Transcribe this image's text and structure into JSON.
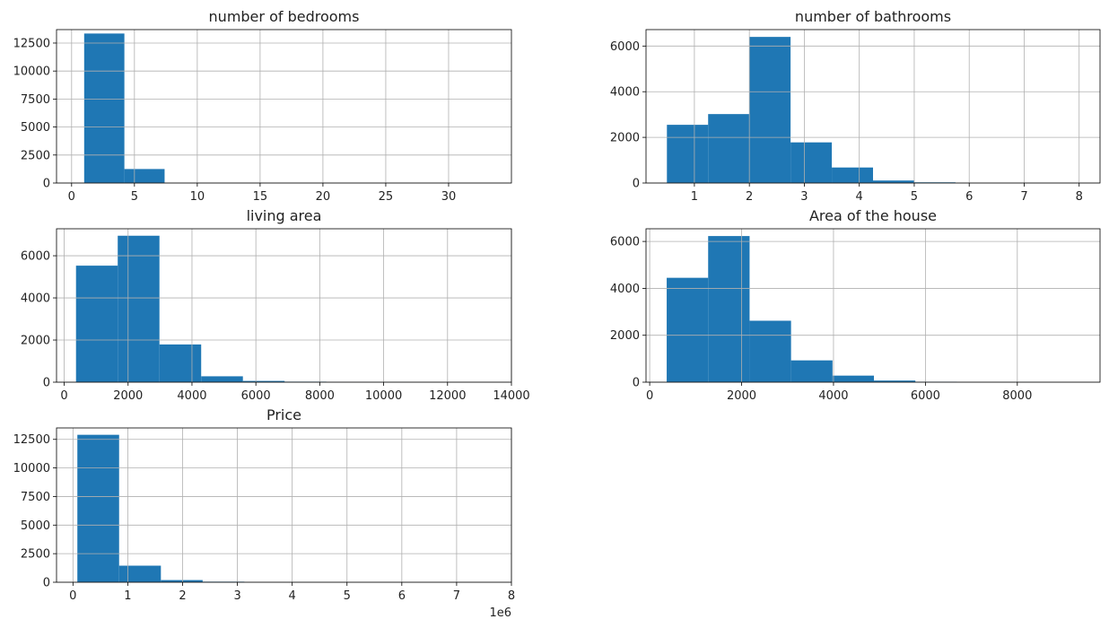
{
  "chart_data": [
    {
      "id": "bedrooms",
      "type": "bar",
      "title": "number of bedrooms",
      "xlim": [
        -1.2,
        35.0
      ],
      "ylim": [
        0,
        13700
      ],
      "xticks": [
        0,
        5,
        10,
        15,
        20,
        25,
        30
      ],
      "yticks": [
        0,
        2500,
        5000,
        7500,
        10000,
        12500
      ],
      "bins": [
        {
          "x0": 1.0,
          "x1": 4.2,
          "value": 13350
        },
        {
          "x0": 4.2,
          "x1": 7.4,
          "value": 1250
        },
        {
          "x0": 7.4,
          "x1": 10.6,
          "value": 0
        },
        {
          "x0": 10.6,
          "x1": 13.8,
          "value": 0
        },
        {
          "x0": 13.8,
          "x1": 17.0,
          "value": 0
        },
        {
          "x0": 17.0,
          "x1": 20.2,
          "value": 0
        },
        {
          "x0": 20.2,
          "x1": 23.4,
          "value": 0
        },
        {
          "x0": 23.4,
          "x1": 26.6,
          "value": 0
        },
        {
          "x0": 26.6,
          "x1": 29.8,
          "value": 0
        },
        {
          "x0": 29.8,
          "x1": 33.0,
          "value": 1
        }
      ],
      "color": "#1f77b4",
      "grid": true
    },
    {
      "id": "bathrooms",
      "type": "bar",
      "title": "number of bathrooms",
      "xlim": [
        0.12,
        8.38
      ],
      "ylim": [
        0,
        6720
      ],
      "xticks": [
        1,
        2,
        3,
        4,
        5,
        6,
        7,
        8
      ],
      "yticks": [
        0,
        2000,
        4000,
        6000
      ],
      "bins": [
        {
          "x0": 0.5,
          "x1": 1.25,
          "value": 2550
        },
        {
          "x0": 1.25,
          "x1": 2.0,
          "value": 3020
        },
        {
          "x0": 2.0,
          "x1": 2.75,
          "value": 6400
        },
        {
          "x0": 2.75,
          "x1": 3.5,
          "value": 1780
        },
        {
          "x0": 3.5,
          "x1": 4.25,
          "value": 680
        },
        {
          "x0": 4.25,
          "x1": 5.0,
          "value": 110
        },
        {
          "x0": 5.0,
          "x1": 5.75,
          "value": 30
        },
        {
          "x0": 5.75,
          "x1": 6.5,
          "value": 5
        },
        {
          "x0": 6.5,
          "x1": 7.25,
          "value": 2
        },
        {
          "x0": 7.25,
          "x1": 8.0,
          "value": 1
        }
      ],
      "color": "#1f77b4",
      "grid": true
    },
    {
      "id": "living_area",
      "type": "bar",
      "title": "living area",
      "xlim": [
        -240,
        14000
      ],
      "ylim": [
        0,
        7280
      ],
      "xticks": [
        0,
        2000,
        4000,
        6000,
        8000,
        10000,
        12000,
        14000
      ],
      "yticks": [
        0,
        2000,
        4000,
        6000
      ],
      "bins": [
        {
          "x0": 370,
          "x1": 1676,
          "value": 5530
        },
        {
          "x0": 1676,
          "x1": 2982,
          "value": 6950
        },
        {
          "x0": 2982,
          "x1": 4288,
          "value": 1790
        },
        {
          "x0": 4288,
          "x1": 5594,
          "value": 280
        },
        {
          "x0": 5594,
          "x1": 6900,
          "value": 60
        },
        {
          "x0": 6900,
          "x1": 8206,
          "value": 25
        },
        {
          "x0": 8206,
          "x1": 9512,
          "value": 5
        },
        {
          "x0": 9512,
          "x1": 10818,
          "value": 2
        },
        {
          "x0": 10818,
          "x1": 12124,
          "value": 1
        },
        {
          "x0": 12124,
          "x1": 13430,
          "value": 1
        }
      ],
      "color": "#1f77b4",
      "grid": true
    },
    {
      "id": "house_area",
      "type": "bar",
      "title": "Area of the house",
      "xlim": [
        -80,
        9800
      ],
      "ylim": [
        0,
        6540
      ],
      "xticks": [
        0,
        2000,
        4000,
        6000,
        8000
      ],
      "yticks": [
        0,
        2000,
        4000,
        6000
      ],
      "bins": [
        {
          "x0": 370,
          "x1": 1272,
          "value": 4450
        },
        {
          "x0": 1272,
          "x1": 2174,
          "value": 6230
        },
        {
          "x0": 2174,
          "x1": 3076,
          "value": 2620
        },
        {
          "x0": 3076,
          "x1": 3978,
          "value": 930
        },
        {
          "x0": 3978,
          "x1": 4880,
          "value": 280
        },
        {
          "x0": 4880,
          "x1": 5782,
          "value": 70
        },
        {
          "x0": 5782,
          "x1": 6684,
          "value": 20
        },
        {
          "x0": 6684,
          "x1": 7586,
          "value": 5
        },
        {
          "x0": 7586,
          "x1": 8488,
          "value": 2
        },
        {
          "x0": 8488,
          "x1": 9390,
          "value": 1
        }
      ],
      "color": "#1f77b4",
      "grid": true
    },
    {
      "id": "price",
      "type": "bar",
      "title": "Price",
      "xlim": [
        -300000,
        8000000
      ],
      "ylim": [
        0,
        13500
      ],
      "xticks": [
        0,
        1000000,
        2000000,
        3000000,
        4000000,
        5000000,
        6000000,
        7000000,
        8000000
      ],
      "xtick_labels": [
        "0",
        "1",
        "2",
        "3",
        "4",
        "5",
        "6",
        "7",
        "8"
      ],
      "x_offset_label": "1e6",
      "yticks": [
        0,
        2500,
        5000,
        7500,
        10000,
        12500
      ],
      "bins": [
        {
          "x0": 80000,
          "x1": 842000,
          "value": 12900
        },
        {
          "x0": 842000,
          "x1": 1604000,
          "value": 1450
        },
        {
          "x0": 1604000,
          "x1": 2366000,
          "value": 190
        },
        {
          "x0": 2366000,
          "x1": 3128000,
          "value": 50
        },
        {
          "x0": 3128000,
          "x1": 3890000,
          "value": 10
        },
        {
          "x0": 3890000,
          "x1": 4652000,
          "value": 4
        },
        {
          "x0": 4652000,
          "x1": 5414000,
          "value": 2
        },
        {
          "x0": 5414000,
          "x1": 6176000,
          "value": 1
        },
        {
          "x0": 6176000,
          "x1": 6938000,
          "value": 1
        },
        {
          "x0": 6938000,
          "x1": 7700000,
          "value": 1
        }
      ],
      "color": "#1f77b4",
      "grid": true
    }
  ]
}
